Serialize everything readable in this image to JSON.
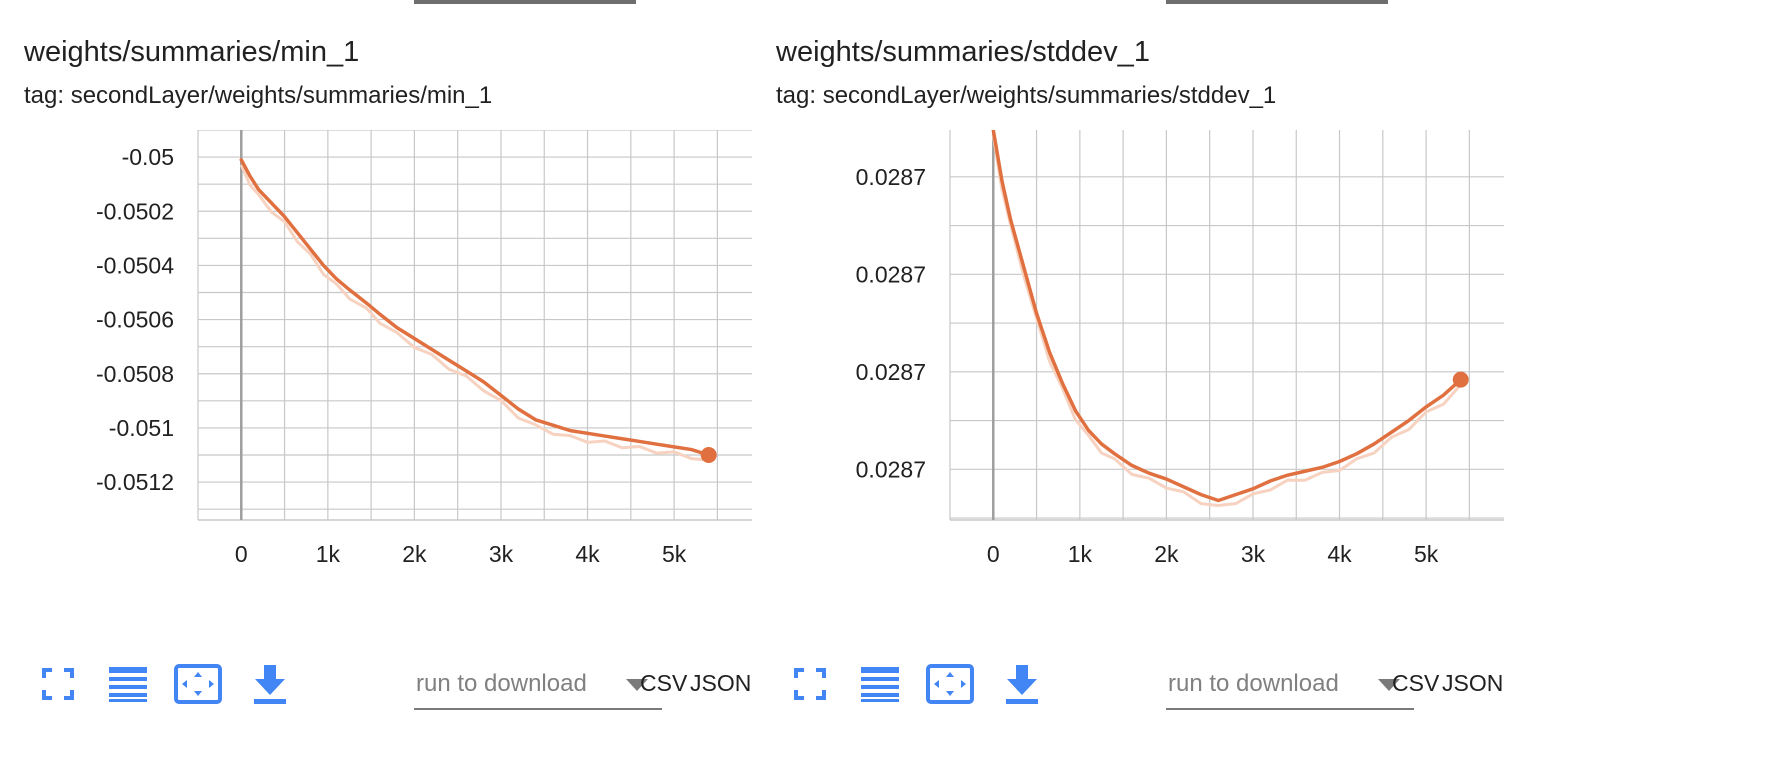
{
  "cards": [
    {
      "title": "weights/summaries/min_1",
      "tag": "tag: secondLayer/weights/summaries/min_1",
      "run_placeholder": "run to download",
      "csv_label": "CSV",
      "json_label": "JSON",
      "icons": [
        "fullscreen-icon",
        "lines-icon",
        "fit-domain-icon",
        "download-icon"
      ]
    },
    {
      "title": "weights/summaries/stddev_1",
      "tag": "tag: secondLayer/weights/summaries/stddev_1",
      "run_placeholder": "run to download",
      "csv_label": "CSV",
      "json_label": "JSON",
      "icons": [
        "fullscreen-icon",
        "lines-icon",
        "fit-domain-icon",
        "download-icon"
      ]
    }
  ],
  "colors": {
    "line": "#e0703f",
    "line_raw": "#f7d2c0",
    "grid": "#c8c8c8",
    "zero_axis": "#9e9e9e",
    "icon": "#4285f4"
  },
  "chart_data": [
    {
      "type": "line",
      "title": "weights/summaries/min_1",
      "xlabel": "",
      "ylabel": "",
      "xlim": [
        -500,
        5900
      ],
      "ylim": [
        -0.05134,
        -0.0499
      ],
      "x_ticks": [
        0,
        1000,
        2000,
        3000,
        4000,
        5000
      ],
      "x_tick_labels": [
        "0",
        "1k",
        "2k",
        "3k",
        "4k",
        "5k"
      ],
      "y_ticks": [
        -0.05,
        -0.0502,
        -0.0504,
        -0.0506,
        -0.0508,
        -0.051,
        -0.0512
      ],
      "y_tick_labels": [
        "-0.05",
        "-0.0502",
        "-0.0504",
        "-0.0506",
        "-0.0508",
        "-0.051",
        "-0.0512"
      ],
      "grid": true,
      "series": [
        {
          "x": [
            0,
            100,
            200,
            350,
            500,
            650,
            800,
            950,
            1100,
            1250,
            1450,
            1600,
            1800,
            2000,
            2200,
            2400,
            2600,
            2800,
            3000,
            3200,
            3400,
            3600,
            3800,
            4000,
            4200,
            4400,
            4600,
            4800,
            5000,
            5200,
            5400
          ],
          "y": [
            -0.05001,
            -0.05007,
            -0.05012,
            -0.05017,
            -0.05022,
            -0.05028,
            -0.05034,
            -0.0504,
            -0.05045,
            -0.05049,
            -0.05054,
            -0.05058,
            -0.05063,
            -0.05067,
            -0.05071,
            -0.05075,
            -0.05079,
            -0.05083,
            -0.05088,
            -0.05093,
            -0.05097,
            -0.05099,
            -0.05101,
            -0.05102,
            -0.05103,
            -0.05104,
            -0.05105,
            -0.05106,
            -0.05107,
            -0.05108,
            -0.0511
          ]
        }
      ]
    },
    {
      "type": "line",
      "title": "weights/summaries/stddev_1",
      "xlabel": "",
      "ylabel": "",
      "xlim": [
        -500,
        5900
      ],
      "ylim": [
        0.0,
        10.0
      ],
      "x_ticks": [
        0,
        1000,
        2000,
        3000,
        4000,
        5000
      ],
      "x_tick_labels": [
        "0",
        "1k",
        "2k",
        "3k",
        "4k",
        "5k"
      ],
      "y_ticks": [
        8.8,
        6.3,
        3.8,
        1.3
      ],
      "y_tick_labels": [
        "0.0287",
        "0.0287",
        "0.0287",
        "0.0287"
      ],
      "grid": true,
      "series": [
        {
          "x": [
            0,
            100,
            200,
            350,
            500,
            650,
            800,
            950,
            1100,
            1250,
            1400,
            1600,
            1800,
            2000,
            2200,
            2400,
            2600,
            2800,
            3000,
            3200,
            3400,
            3600,
            3800,
            4000,
            4200,
            4400,
            4600,
            4800,
            5000,
            5200,
            5400
          ],
          "y": [
            10.0,
            8.7,
            7.7,
            6.5,
            5.3,
            4.3,
            3.5,
            2.8,
            2.3,
            1.95,
            1.7,
            1.4,
            1.2,
            1.05,
            0.85,
            0.65,
            0.5,
            0.65,
            0.8,
            1.0,
            1.15,
            1.25,
            1.35,
            1.5,
            1.7,
            1.95,
            2.25,
            2.55,
            2.9,
            3.2,
            3.6
          ]
        }
      ]
    }
  ]
}
